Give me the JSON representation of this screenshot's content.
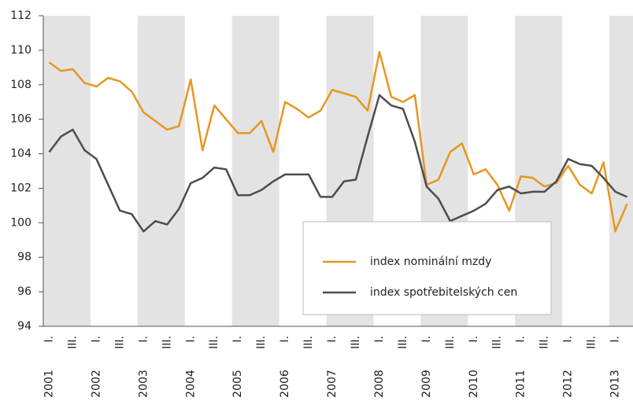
{
  "chart_data": {
    "type": "line",
    "categories": [
      "I.",
      null,
      "III.",
      null,
      "I.",
      null,
      "III.",
      null,
      "I.",
      null,
      "III.",
      null,
      "I.",
      null,
      "III.",
      null,
      "I.",
      null,
      "III.",
      null,
      "I.",
      null,
      "III.",
      null,
      "I.",
      null,
      "III.",
      null,
      "I.",
      null,
      "III.",
      null,
      "I.",
      null,
      "III.",
      null,
      "I.",
      null,
      "III.",
      null,
      "I.",
      null,
      "III.",
      null,
      "I.",
      null,
      "III.",
      null,
      "I.",
      null
    ],
    "years": [
      "2001",
      "2002",
      "2003",
      "2004",
      "2005",
      "2006",
      "2007",
      "2008",
      "2009",
      "2010",
      "2011",
      "2012",
      "2013"
    ],
    "series": [
      {
        "name": "index nominální mzdy",
        "color": "#e8961f",
        "values": [
          109.3,
          108.8,
          108.9,
          108.1,
          107.9,
          108.4,
          108.2,
          107.6,
          106.4,
          105.9,
          105.4,
          105.6,
          108.3,
          104.2,
          106.8,
          106.0,
          105.2,
          105.2,
          105.9,
          104.1,
          107.0,
          106.6,
          106.1,
          106.5,
          107.7,
          107.5,
          107.3,
          106.5,
          109.9,
          107.3,
          107.0,
          107.4,
          102.2,
          102.5,
          104.1,
          104.6,
          102.8,
          103.1,
          102.2,
          100.7,
          102.7,
          102.6,
          102.1,
          102.3,
          103.3,
          102.2,
          101.7,
          103.5,
          99.5,
          101.1
        ]
      },
      {
        "name": "index spotřebitelských cen",
        "color": "#4d4d4f",
        "values": [
          104.1,
          105.0,
          105.4,
          104.2,
          103.7,
          102.2,
          100.7,
          100.5,
          99.5,
          100.1,
          99.9,
          100.8,
          102.3,
          102.6,
          103.2,
          103.1,
          101.6,
          101.6,
          101.9,
          102.4,
          102.8,
          102.8,
          102.8,
          101.5,
          101.5,
          102.4,
          102.5,
          105.0,
          107.4,
          106.8,
          106.6,
          104.7,
          102.1,
          101.4,
          100.1,
          100.4,
          100.7,
          101.1,
          101.9,
          102.1,
          101.7,
          101.8,
          101.8,
          102.4,
          103.7,
          103.4,
          103.3,
          102.6,
          101.8,
          101.5
        ]
      }
    ],
    "ylim": [
      94,
      112
    ],
    "yticks": [
      94,
      96,
      98,
      100,
      102,
      104,
      106,
      108,
      110,
      112
    ],
    "band_color": "#e3e3e4"
  }
}
